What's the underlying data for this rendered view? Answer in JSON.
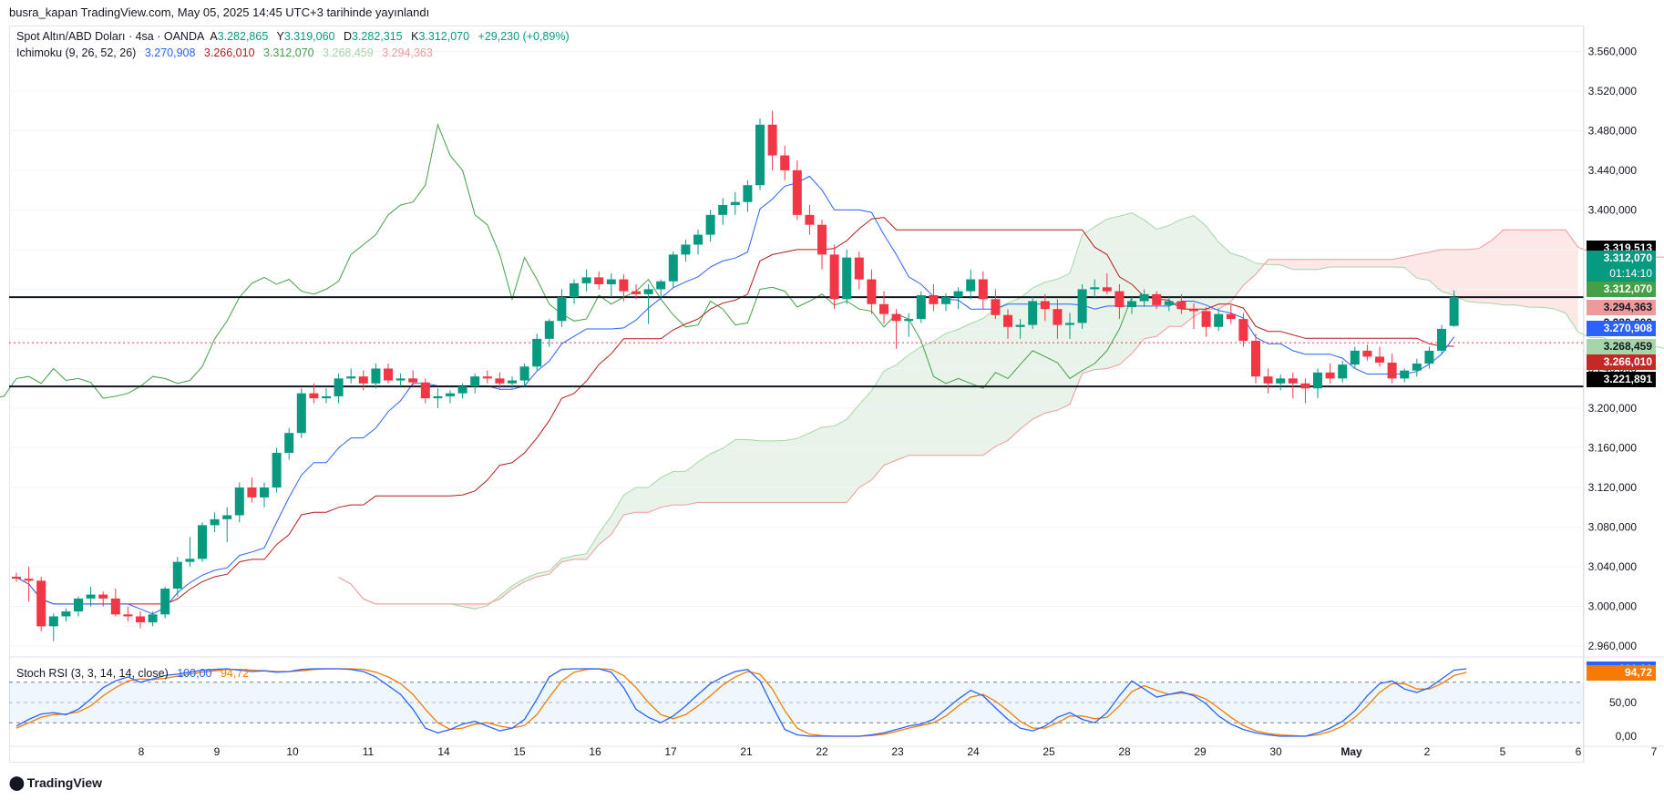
{
  "header": {
    "published": "busra_kapan TradingView.com, May 05, 2025 14:45 UTC+3 tarihinde yayınlandı"
  },
  "legend": {
    "symbol": "Spot Altın/ABD Doları · 4sa · OANDA",
    "open_label": "A",
    "open": "3.282,865",
    "high_label": "Y",
    "high": "3.319,060",
    "low_label": "D",
    "low": "3.282,315",
    "close_label": "K",
    "close": "3.312,070",
    "change": "+29,230 (+0,89%)",
    "ichimoku_name": "Ichimoku (9, 26, 52, 26)",
    "ichimoku_values": [
      "3.270,908",
      "3.266,010",
      "3.312,070",
      "3.268,459",
      "3.294,363"
    ],
    "stoch_name": "Stoch RSI (3, 3, 14, 14, close)",
    "stoch_values": [
      "100,00",
      "94,72"
    ]
  },
  "price_tags": [
    {
      "text": "3.319,513",
      "color": "#000000",
      "text_color": "#ffffff",
      "value": 3319.513
    },
    {
      "text": "3.312,070",
      "color": "#089981",
      "text_color": "#ffffff",
      "value": 3312.07,
      "sub": "01:14:10"
    },
    {
      "text": "3.312,070",
      "color": "#43a047",
      "text_color": "#ffffff",
      "value": 3312.07
    },
    {
      "text": "3.294,363",
      "color": "#ef9a9a",
      "text_color": "#131722",
      "value": 3294.363
    },
    {
      "text": "3.280,000",
      "color": "#ffffff",
      "text_color": "#131722",
      "value": 3280.0
    },
    {
      "text": "3.270,908",
      "color": "#2962ff",
      "text_color": "#ffffff",
      "value": 3270.908
    },
    {
      "text": "3.268,459",
      "color": "#a5d6a7",
      "text_color": "#131722",
      "value": 3268.459
    },
    {
      "text": "3.266,010",
      "color": "#c62828",
      "text_color": "#ffffff",
      "value": 3266.01
    },
    {
      "text": "3.221,891",
      "color": "#000000",
      "text_color": "#ffffff",
      "value": 3221.891
    }
  ],
  "stoch_tags": [
    {
      "text": "100,00",
      "color": "#2962ff",
      "value": 100
    },
    {
      "text": "94,72",
      "color": "#f57c00",
      "value": 94.72
    }
  ],
  "footer": {
    "brand": "TradingView"
  },
  "colors": {
    "up": "#089981",
    "down": "#f23645",
    "tenkan": "#2962ff",
    "kijun": "#b71c1c",
    "chikou": "#43a047",
    "span_a": "#a5d6a7",
    "span_b": "#ef9a9a",
    "k_line": "#2962ff",
    "d_line": "#f57c00"
  },
  "chart_data": {
    "type": "candlestick",
    "y_ticks": [
      "3.560,000",
      "3.520,000",
      "3.480,000",
      "3.440,000",
      "3.400,000",
      "3.360,000",
      "3.320,000",
      "3.280,000",
      "3.240,000",
      "3.200,000",
      "3.160,000",
      "3.120,000",
      "3.080,000",
      "3.040,000",
      "3.000,000",
      "2.960,000"
    ],
    "y_tick_values": [
      3560,
      3520,
      3480,
      3440,
      3400,
      3360,
      3320,
      3280,
      3240,
      3200,
      3160,
      3120,
      3080,
      3040,
      3000,
      2960
    ],
    "ylim": [
      2950,
      3575
    ],
    "x_labels": [
      "8",
      "9",
      "10",
      "11",
      "14",
      "15",
      "16",
      "17",
      "21",
      "22",
      "23",
      "24",
      "25",
      "28",
      "29",
      "30",
      "May",
      "2",
      "5",
      "6",
      "7"
    ],
    "x_label_bar_index": [
      6,
      12,
      18,
      24,
      30,
      36,
      42,
      48,
      54,
      60,
      66,
      72,
      78,
      84,
      90,
      96,
      102,
      108,
      114,
      120,
      126
    ],
    "horizontal_levels": [
      3221.891,
      3266.01,
      3312.07
    ],
    "candles": [
      [
        3030,
        3034,
        3025,
        3028
      ],
      [
        3028,
        3040,
        3005,
        3026
      ],
      [
        3026,
        3030,
        2975,
        2980
      ],
      [
        2980,
        2993,
        2965,
        2990
      ],
      [
        2990,
        2998,
        2985,
        2995
      ],
      [
        2995,
        3010,
        2990,
        3008
      ],
      [
        3008,
        3020,
        3000,
        3012
      ],
      [
        3012,
        3015,
        3000,
        3008
      ],
      [
        3008,
        3018,
        2990,
        2992
      ],
      [
        2992,
        3000,
        2985,
        2990
      ],
      [
        2990,
        2995,
        2978,
        2984
      ],
      [
        2984,
        2995,
        2980,
        2992
      ],
      [
        2992,
        3020,
        2988,
        3018
      ],
      [
        3018,
        3050,
        3010,
        3045
      ],
      [
        3045,
        3070,
        3040,
        3048
      ],
      [
        3048,
        3085,
        3045,
        3082
      ],
      [
        3082,
        3095,
        3075,
        3088
      ],
      [
        3088,
        3100,
        3065,
        3092
      ],
      [
        3092,
        3125,
        3085,
        3120
      ],
      [
        3120,
        3130,
        3105,
        3110
      ],
      [
        3110,
        3125,
        3100,
        3120
      ],
      [
        3120,
        3160,
        3115,
        3155
      ],
      [
        3155,
        3180,
        3148,
        3175
      ],
      [
        3175,
        3220,
        3170,
        3215
      ],
      [
        3215,
        3225,
        3205,
        3210
      ],
      [
        3210,
        3220,
        3205,
        3212
      ],
      [
        3212,
        3235,
        3205,
        3230
      ],
      [
        3230,
        3240,
        3225,
        3232
      ],
      [
        3232,
        3238,
        3218,
        3225
      ],
      [
        3225,
        3245,
        3220,
        3240
      ],
      [
        3240,
        3245,
        3225,
        3228
      ],
      [
        3228,
        3235,
        3222,
        3230
      ],
      [
        3230,
        3238,
        3222,
        3226
      ],
      [
        3226,
        3230,
        3205,
        3210
      ],
      [
        3210,
        3220,
        3200,
        3212
      ],
      [
        3212,
        3218,
        3205,
        3215
      ],
      [
        3215,
        3225,
        3210,
        3222
      ],
      [
        3222,
        3235,
        3215,
        3232
      ],
      [
        3232,
        3238,
        3225,
        3230
      ],
      [
        3230,
        3236,
        3220,
        3225
      ],
      [
        3225,
        3232,
        3220,
        3228
      ],
      [
        3228,
        3245,
        3222,
        3242
      ],
      [
        3242,
        3275,
        3238,
        3270
      ],
      [
        3270,
        3290,
        3262,
        3288
      ],
      [
        3288,
        3320,
        3282,
        3312
      ],
      [
        3312,
        3330,
        3305,
        3326
      ],
      [
        3326,
        3340,
        3318,
        3332
      ],
      [
        3332,
        3338,
        3320,
        3325
      ],
      [
        3325,
        3336,
        3312,
        3330
      ],
      [
        3330,
        3335,
        3308,
        3318
      ],
      [
        3318,
        3325,
        3310,
        3315
      ],
      [
        3315,
        3325,
        3285,
        3320
      ],
      [
        3320,
        3330,
        3310,
        3328
      ],
      [
        3328,
        3358,
        3322,
        3355
      ],
      [
        3355,
        3370,
        3348,
        3365
      ],
      [
        3365,
        3380,
        3355,
        3375
      ],
      [
        3375,
        3400,
        3368,
        3395
      ],
      [
        3395,
        3412,
        3385,
        3405
      ],
      [
        3405,
        3418,
        3395,
        3408
      ],
      [
        3408,
        3430,
        3398,
        3425
      ],
      [
        3425,
        3492,
        3420,
        3486
      ],
      [
        3486,
        3500,
        3440,
        3455
      ],
      [
        3455,
        3465,
        3430,
        3440
      ],
      [
        3440,
        3450,
        3390,
        3395
      ],
      [
        3395,
        3405,
        3375,
        3385
      ],
      [
        3385,
        3390,
        3340,
        3355
      ],
      [
        3355,
        3365,
        3300,
        3310
      ],
      [
        3310,
        3360,
        3305,
        3352
      ],
      [
        3352,
        3358,
        3320,
        3330
      ],
      [
        3330,
        3340,
        3295,
        3305
      ],
      [
        3305,
        3318,
        3285,
        3295
      ],
      [
        3295,
        3300,
        3260,
        3288
      ],
      [
        3288,
        3296,
        3272,
        3290
      ],
      [
        3290,
        3318,
        3286,
        3314
      ],
      [
        3314,
        3325,
        3298,
        3305
      ],
      [
        3305,
        3316,
        3298,
        3312
      ],
      [
        3312,
        3322,
        3300,
        3318
      ],
      [
        3318,
        3340,
        3310,
        3330
      ],
      [
        3330,
        3338,
        3300,
        3310
      ],
      [
        3310,
        3320,
        3290,
        3294
      ],
      [
        3294,
        3300,
        3270,
        3282
      ],
      [
        3282,
        3290,
        3270,
        3284
      ],
      [
        3284,
        3312,
        3280,
        3308
      ],
      [
        3308,
        3315,
        3288,
        3300
      ],
      [
        3300,
        3310,
        3270,
        3284
      ],
      [
        3284,
        3296,
        3270,
        3286
      ],
      [
        3286,
        3325,
        3280,
        3320
      ],
      [
        3320,
        3330,
        3312,
        3322
      ],
      [
        3322,
        3336,
        3315,
        3318
      ],
      [
        3318,
        3325,
        3290,
        3302
      ],
      [
        3302,
        3312,
        3295,
        3308
      ],
      [
        3308,
        3320,
        3302,
        3315
      ],
      [
        3315,
        3318,
        3300,
        3304
      ],
      [
        3304,
        3312,
        3298,
        3308
      ],
      [
        3308,
        3315,
        3295,
        3300
      ],
      [
        3300,
        3306,
        3280,
        3298
      ],
      [
        3298,
        3302,
        3272,
        3282
      ],
      [
        3282,
        3300,
        3278,
        3295
      ],
      [
        3295,
        3304,
        3285,
        3290
      ],
      [
        3290,
        3296,
        3262,
        3268
      ],
      [
        3268,
        3275,
        3225,
        3232
      ],
      [
        3232,
        3240,
        3215,
        3225
      ],
      [
        3225,
        3234,
        3218,
        3230
      ],
      [
        3230,
        3236,
        3210,
        3225
      ],
      [
        3225,
        3230,
        3205,
        3220
      ],
      [
        3220,
        3240,
        3210,
        3236
      ],
      [
        3236,
        3245,
        3225,
        3230
      ],
      [
        3230,
        3248,
        3226,
        3244
      ],
      [
        3244,
        3262,
        3240,
        3258
      ],
      [
        3258,
        3264,
        3248,
        3252
      ],
      [
        3252,
        3262,
        3242,
        3246
      ],
      [
        3246,
        3255,
        3225,
        3230
      ],
      [
        3230,
        3240,
        3226,
        3238
      ],
      [
        3238,
        3250,
        3232,
        3245
      ],
      [
        3245,
        3262,
        3240,
        3258
      ],
      [
        3258,
        3284,
        3254,
        3280
      ],
      [
        3283,
        3319,
        3282,
        3312
      ]
    ]
  },
  "stoch_chart": {
    "type": "line",
    "y_ticks": [
      "100,00",
      "50,00",
      "0,00"
    ],
    "y_tick_values": [
      100,
      50,
      0
    ],
    "bands": [
      80,
      20
    ],
    "k": [
      15,
      25,
      33,
      35,
      32,
      40,
      55,
      72,
      82,
      88,
      80,
      85,
      90,
      92,
      95,
      98,
      99,
      100,
      98,
      96,
      97,
      95,
      96,
      99,
      100,
      100,
      100,
      99,
      96,
      88,
      75,
      62,
      40,
      12,
      5,
      10,
      18,
      22,
      15,
      8,
      12,
      25,
      55,
      88,
      99,
      100,
      100,
      100,
      95,
      72,
      40,
      28,
      20,
      30,
      45,
      62,
      78,
      88,
      96,
      99,
      82,
      45,
      10,
      2,
      0,
      0,
      0,
      0,
      0,
      2,
      5,
      10,
      15,
      18,
      25,
      40,
      55,
      68,
      60,
      42,
      25,
      12,
      8,
      15,
      28,
      35,
      25,
      20,
      35,
      60,
      82,
      70,
      58,
      62,
      66,
      60,
      48,
      30,
      18,
      10,
      5,
      2,
      0,
      0,
      0,
      5,
      12,
      22,
      38,
      60,
      78,
      82,
      70,
      65,
      72,
      85,
      98,
      100
    ],
    "d": [
      12,
      20,
      28,
      32,
      33,
      36,
      45,
      60,
      72,
      82,
      85,
      84,
      86,
      89,
      92,
      95,
      97,
      99,
      99,
      98,
      97,
      96,
      96,
      97,
      99,
      100,
      100,
      100,
      99,
      95,
      88,
      78,
      62,
      40,
      20,
      10,
      12,
      18,
      20,
      15,
      12,
      16,
      32,
      58,
      82,
      95,
      99,
      100,
      99,
      90,
      72,
      50,
      32,
      26,
      32,
      45,
      60,
      76,
      88,
      96,
      92,
      70,
      38,
      12,
      3,
      1,
      0,
      0,
      0,
      1,
      3,
      7,
      12,
      16,
      20,
      30,
      45,
      58,
      62,
      52,
      38,
      22,
      12,
      12,
      20,
      30,
      30,
      26,
      28,
      45,
      66,
      75,
      68,
      62,
      64,
      62,
      55,
      42,
      28,
      16,
      8,
      4,
      2,
      1,
      0,
      2,
      7,
      15,
      28,
      45,
      65,
      78,
      78,
      70,
      70,
      78,
      90,
      94.72
    ]
  }
}
